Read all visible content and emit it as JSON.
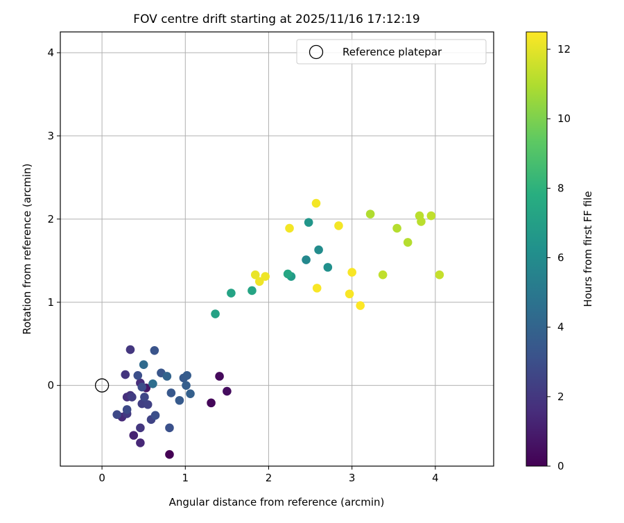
{
  "chart_data": {
    "type": "scatter",
    "title": "FOV centre drift starting at 2025/11/16 17:12:19",
    "xlabel": "Angular distance from reference (arcmin)",
    "ylabel": "Rotation from reference (arcmin)",
    "xlim": [
      -0.5,
      4.7
    ],
    "ylim": [
      -0.97,
      4.25
    ],
    "xticks": [
      0,
      1,
      2,
      3,
      4
    ],
    "yticks": [
      0,
      1,
      2,
      3,
      4
    ],
    "grid": true,
    "legend": {
      "position": "top-right",
      "label": "Reference platepar"
    },
    "reference_point": {
      "x": 0,
      "y": 0
    },
    "colorbar": {
      "label": "Hours from first FF file",
      "min": 0,
      "max": 12.5,
      "ticks": [
        0,
        2,
        4,
        6,
        8,
        10,
        12
      ]
    },
    "points": [
      {
        "x": 0.81,
        "y": -0.83,
        "h": 0.0
      },
      {
        "x": 1.31,
        "y": -0.21,
        "h": 0.2
      },
      {
        "x": 1.41,
        "y": 0.11,
        "h": 0.3
      },
      {
        "x": 1.5,
        "y": -0.07,
        "h": 0.4
      },
      {
        "x": 0.53,
        "y": -0.03,
        "h": 0.8
      },
      {
        "x": 0.38,
        "y": -0.6,
        "h": 1.2
      },
      {
        "x": 0.46,
        "y": -0.69,
        "h": 1.4
      },
      {
        "x": 0.24,
        "y": -0.38,
        "h": 1.5
      },
      {
        "x": 0.46,
        "y": 0.03,
        "h": 1.6
      },
      {
        "x": 0.3,
        "y": -0.14,
        "h": 1.7
      },
      {
        "x": 0.34,
        "y": -0.12,
        "h": 1.8
      },
      {
        "x": 0.28,
        "y": 0.13,
        "h": 1.9
      },
      {
        "x": 0.34,
        "y": 0.43,
        "h": 2.0
      },
      {
        "x": 0.46,
        "y": -0.51,
        "h": 2.0
      },
      {
        "x": 0.3,
        "y": -0.34,
        "h": 2.1
      },
      {
        "x": 0.36,
        "y": -0.14,
        "h": 2.2
      },
      {
        "x": 0.48,
        "y": -0.22,
        "h": 2.3
      },
      {
        "x": 0.55,
        "y": -0.23,
        "h": 2.4
      },
      {
        "x": 0.59,
        "y": -0.41,
        "h": 2.5
      },
      {
        "x": 0.51,
        "y": -0.14,
        "h": 2.6
      },
      {
        "x": 0.18,
        "y": -0.35,
        "h": 2.7
      },
      {
        "x": 0.3,
        "y": -0.29,
        "h": 2.8
      },
      {
        "x": 0.48,
        "y": -0.02,
        "h": 2.9
      },
      {
        "x": 0.64,
        "y": -0.36,
        "h": 3.0
      },
      {
        "x": 0.43,
        "y": 0.12,
        "h": 3.0
      },
      {
        "x": 0.81,
        "y": -0.51,
        "h": 3.1
      },
      {
        "x": 0.63,
        "y": 0.42,
        "h": 3.2
      },
      {
        "x": 0.71,
        "y": 0.15,
        "h": 3.3
      },
      {
        "x": 0.83,
        "y": -0.09,
        "h": 3.4
      },
      {
        "x": 0.93,
        "y": -0.18,
        "h": 3.5
      },
      {
        "x": 0.98,
        "y": 0.09,
        "h": 3.5
      },
      {
        "x": 1.02,
        "y": 0.12,
        "h": 3.6
      },
      {
        "x": 1.01,
        "y": 0.0,
        "h": 3.7
      },
      {
        "x": 1.06,
        "y": -0.1,
        "h": 3.8
      },
      {
        "x": 0.78,
        "y": 0.11,
        "h": 4.0
      },
      {
        "x": 0.5,
        "y": 0.25,
        "h": 4.3
      },
      {
        "x": 0.61,
        "y": 0.02,
        "h": 4.5
      },
      {
        "x": 2.45,
        "y": 1.51,
        "h": 5.8
      },
      {
        "x": 2.6,
        "y": 1.63,
        "h": 6.0
      },
      {
        "x": 2.71,
        "y": 1.42,
        "h": 6.2
      },
      {
        "x": 2.48,
        "y": 1.96,
        "h": 6.5
      },
      {
        "x": 2.27,
        "y": 1.31,
        "h": 6.8
      },
      {
        "x": 1.36,
        "y": 0.86,
        "h": 7.1
      },
      {
        "x": 1.55,
        "y": 1.11,
        "h": 7.2
      },
      {
        "x": 1.8,
        "y": 1.14,
        "h": 7.3
      },
      {
        "x": 2.23,
        "y": 1.34,
        "h": 7.4
      },
      {
        "x": 3.22,
        "y": 2.06,
        "h": 11.0
      },
      {
        "x": 3.54,
        "y": 1.89,
        "h": 11.1
      },
      {
        "x": 3.67,
        "y": 1.72,
        "h": 11.1
      },
      {
        "x": 3.81,
        "y": 2.04,
        "h": 11.2
      },
      {
        "x": 3.83,
        "y": 1.97,
        "h": 11.2
      },
      {
        "x": 3.95,
        "y": 2.04,
        "h": 11.3
      },
      {
        "x": 3.37,
        "y": 1.33,
        "h": 11.3
      },
      {
        "x": 4.05,
        "y": 1.33,
        "h": 11.4
      },
      {
        "x": 1.84,
        "y": 1.33,
        "h": 12.1
      },
      {
        "x": 1.89,
        "y": 1.25,
        "h": 12.2
      },
      {
        "x": 1.96,
        "y": 1.31,
        "h": 12.2
      },
      {
        "x": 2.25,
        "y": 1.89,
        "h": 12.3
      },
      {
        "x": 2.57,
        "y": 2.19,
        "h": 12.3
      },
      {
        "x": 2.84,
        "y": 1.92,
        "h": 12.3
      },
      {
        "x": 2.58,
        "y": 1.17,
        "h": 12.4
      },
      {
        "x": 3.0,
        "y": 1.36,
        "h": 12.4
      },
      {
        "x": 2.97,
        "y": 1.1,
        "h": 12.4
      },
      {
        "x": 3.1,
        "y": 0.96,
        "h": 12.5
      }
    ]
  }
}
